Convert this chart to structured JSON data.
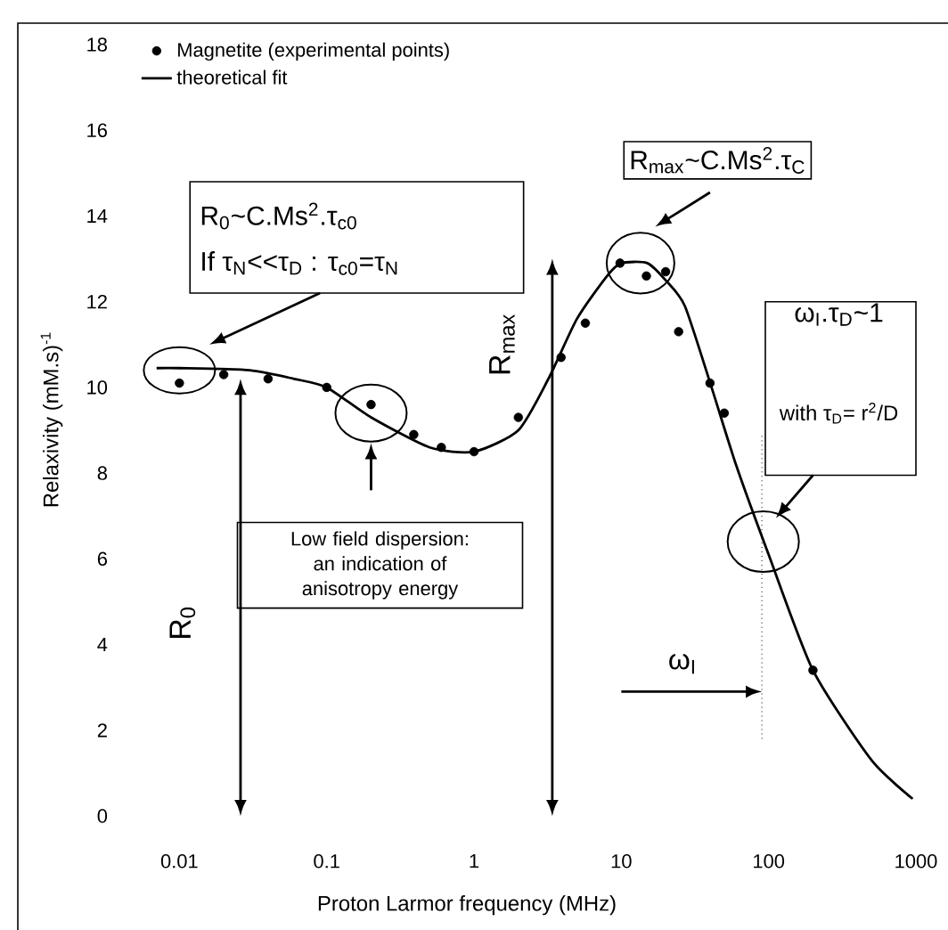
{
  "chart_data": {
    "type": "scatter",
    "xlabel": "Proton Larmor frequency (MHz)",
    "ylabel": "Relaxivity (mM.s)$^{-1}$",
    "log": "x",
    "xlim": [
      0.0008,
      1000
    ],
    "ylim": [
      0,
      18.5
    ],
    "xticks": [
      0.01,
      0.1,
      1,
      10,
      100,
      1000
    ],
    "yticks": [
      0,
      2,
      4,
      6,
      8,
      10,
      12,
      14,
      16,
      18
    ],
    "legend": "top left",
    "grid": false,
    "series": [
      {
        "name": "Magnetite (experimental points)",
        "color": "#000000",
        "marker": "circle",
        "x": [
          0.01,
          0.02,
          0.04,
          0.1,
          0.2,
          0.39,
          0.6,
          1,
          2,
          3.9,
          5.7,
          9.8,
          14.8,
          20,
          24.5,
          40,
          50,
          200
        ],
        "values": [
          10.1,
          10.3,
          10.2,
          10.0,
          9.6,
          8.9,
          8.6,
          8.5,
          9.3,
          10.7,
          11.5,
          12.9,
          12.6,
          12.7,
          11.3,
          10.1,
          9.4,
          3.4
        ]
      },
      {
        "name": "theoretical fit",
        "type": "line",
        "color": "#000000",
        "marker": "none",
        "line_style": "solid",
        "x": [
          0.007,
          0.01,
          0.03,
          0.06,
          0.1,
          0.2,
          0.5,
          1,
          2,
          3.2,
          5,
          8,
          10,
          15,
          20,
          27,
          41,
          60,
          100,
          200,
          500,
          950
        ],
        "values": [
          10.45,
          10.45,
          10.4,
          10.2,
          10.0,
          9.3,
          8.6,
          8.5,
          9.0,
          10.2,
          11.6,
          12.6,
          12.9,
          12.9,
          12.5,
          11.9,
          10.0,
          8.2,
          6.1,
          3.4,
          1.3,
          0.4
        ]
      }
    ],
    "ref_lines": [
      {
        "axis": "x",
        "value": 90,
        "line_style": "dotted"
      }
    ],
    "annotations": [
      "R$_{0}$~C.Ms$^{2}$.τ$_{c0}$",
      "If τ$_{N}$<<τ$_{D}$ : τ$_{c0}$=τ$_{N}$",
      "R$_{max}$~C.Ms$^{2}$.τ$_{C}$",
      "ω$_{I}$.τ$_{D}$~1",
      "with τ$_{D}$= r$^{2}$/D",
      "Low field dispersion: an indication of anisotropy energy",
      "R$_{0}$",
      "R$_{max}$",
      "ω$_{I}$"
    ]
  }
}
